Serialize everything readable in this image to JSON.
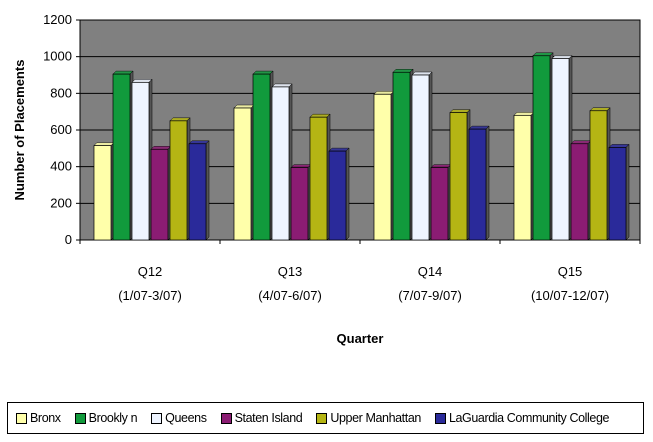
{
  "chart_data": {
    "type": "bar",
    "title": "",
    "xlabel": "Quarter",
    "ylabel": "Number of Placements",
    "ylim": [
      0,
      1200
    ],
    "yticks": [
      0,
      200,
      400,
      600,
      800,
      1000,
      1200
    ],
    "grid": true,
    "plot_background": "#808080",
    "legend_position": "bottom",
    "categories": [
      [
        "Q12",
        "(1/07-3/07)"
      ],
      [
        "Q13",
        "(4/07-6/07)"
      ],
      [
        "Q14",
        "(7/07-9/07)"
      ],
      [
        "Q15",
        "(10/07-12/07)"
      ]
    ],
    "series": [
      {
        "name": "Bronx",
        "color": "#FFFFAA",
        "values": [
          515,
          720,
          795,
          680
        ]
      },
      {
        "name": "Brookly n",
        "color": "#119A3C",
        "values": [
          905,
          905,
          915,
          1005
        ]
      },
      {
        "name": "Queens",
        "color": "#EEF4FF",
        "values": [
          860,
          835,
          900,
          990
        ]
      },
      {
        "name": "Staten Island",
        "color": "#8B1C73",
        "values": [
          495,
          395,
          395,
          525
        ]
      },
      {
        "name": "Upper Manhattan",
        "color": "#B5B514",
        "values": [
          650,
          670,
          695,
          705
        ]
      },
      {
        "name": "LaGuardia Community College",
        "color": "#2A2A9A",
        "values": [
          525,
          485,
          605,
          505
        ]
      }
    ]
  }
}
